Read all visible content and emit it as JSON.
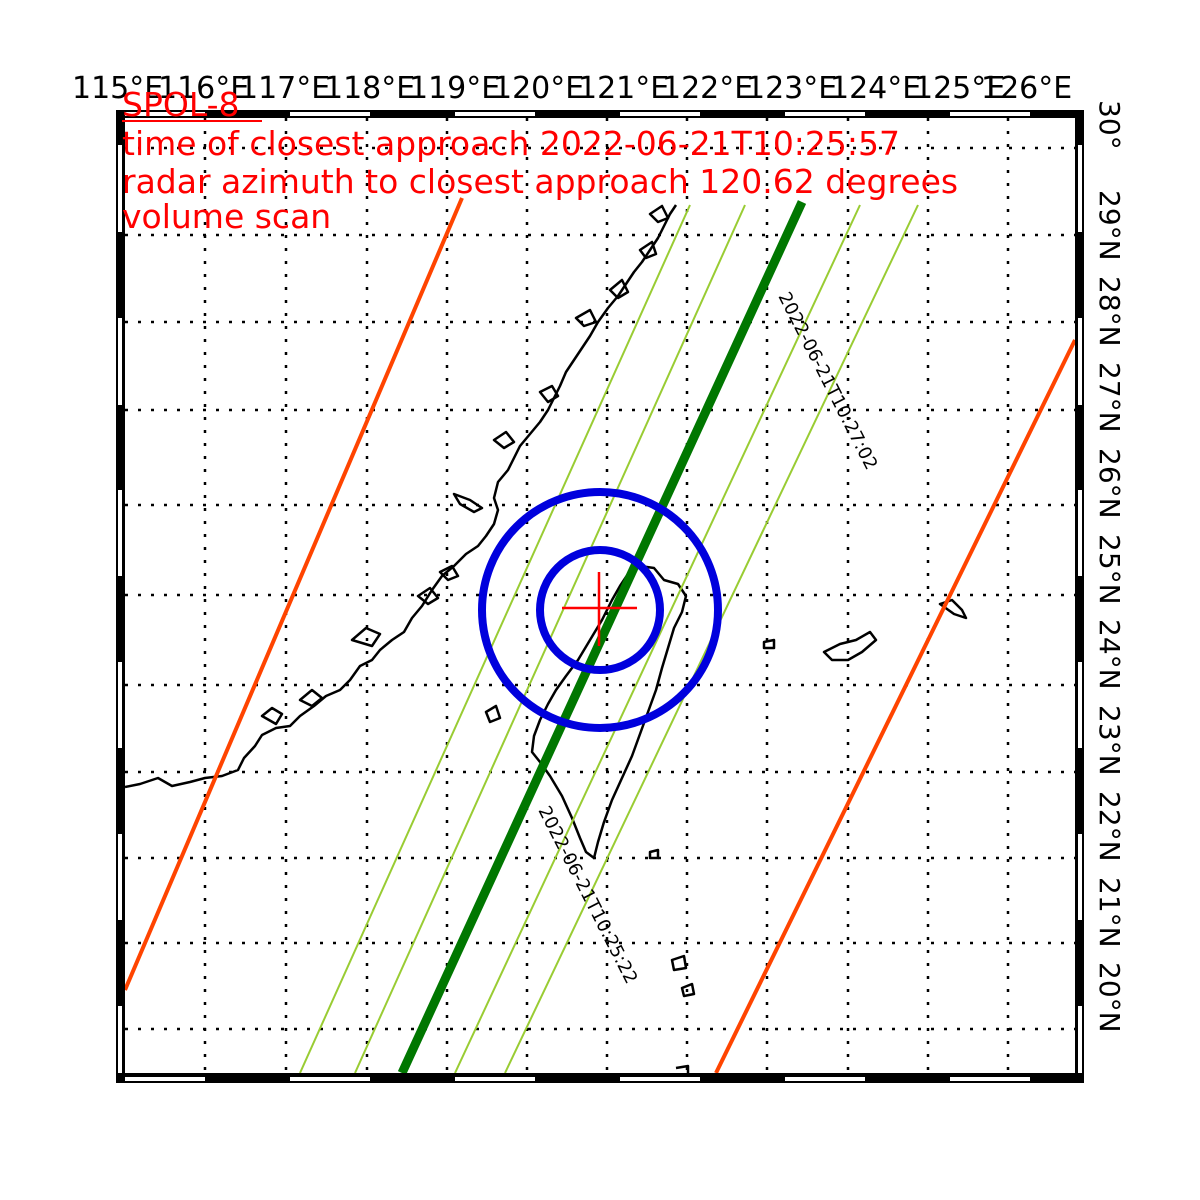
{
  "map": {
    "lon_labels": [
      "115°E",
      "116°E",
      "117°E",
      "118°E",
      "119°E",
      "120°E",
      "121°E",
      "122°E",
      "123°E",
      "124°E",
      "125°E",
      "126°E"
    ],
    "lat_labels": [
      "30°",
      "29°N",
      "28°N",
      "27°N",
      "26°N",
      "25°N",
      "24°N",
      "23°N",
      "22°N",
      "21°N",
      "20°N"
    ],
    "lon_range": [
      115,
      126.5
    ],
    "lat_range": [
      19.6,
      30.6
    ],
    "gridlines": "dotted",
    "colors": {
      "title": "#ff0000",
      "radar_marker": "#ff0000",
      "range_rings": "#0000dd",
      "ground_track": "#007700",
      "swath_lines": "#99cc33",
      "swath_edges": "#ff4400",
      "coastline": "#000000"
    }
  },
  "title": {
    "line1": "SPOL-8",
    "line2": "time of closest approach 2022-06-21T10:25:57",
    "line3": "radar azimuth to closest approach 120.62 degrees",
    "line4": "volume scan"
  },
  "radar": {
    "symbol": "red-plus-icon",
    "range_rings": 2
  },
  "track_labels": {
    "upper": "2022-06-21T10:27:02",
    "lower": "2022-06-21T10:25:22"
  }
}
